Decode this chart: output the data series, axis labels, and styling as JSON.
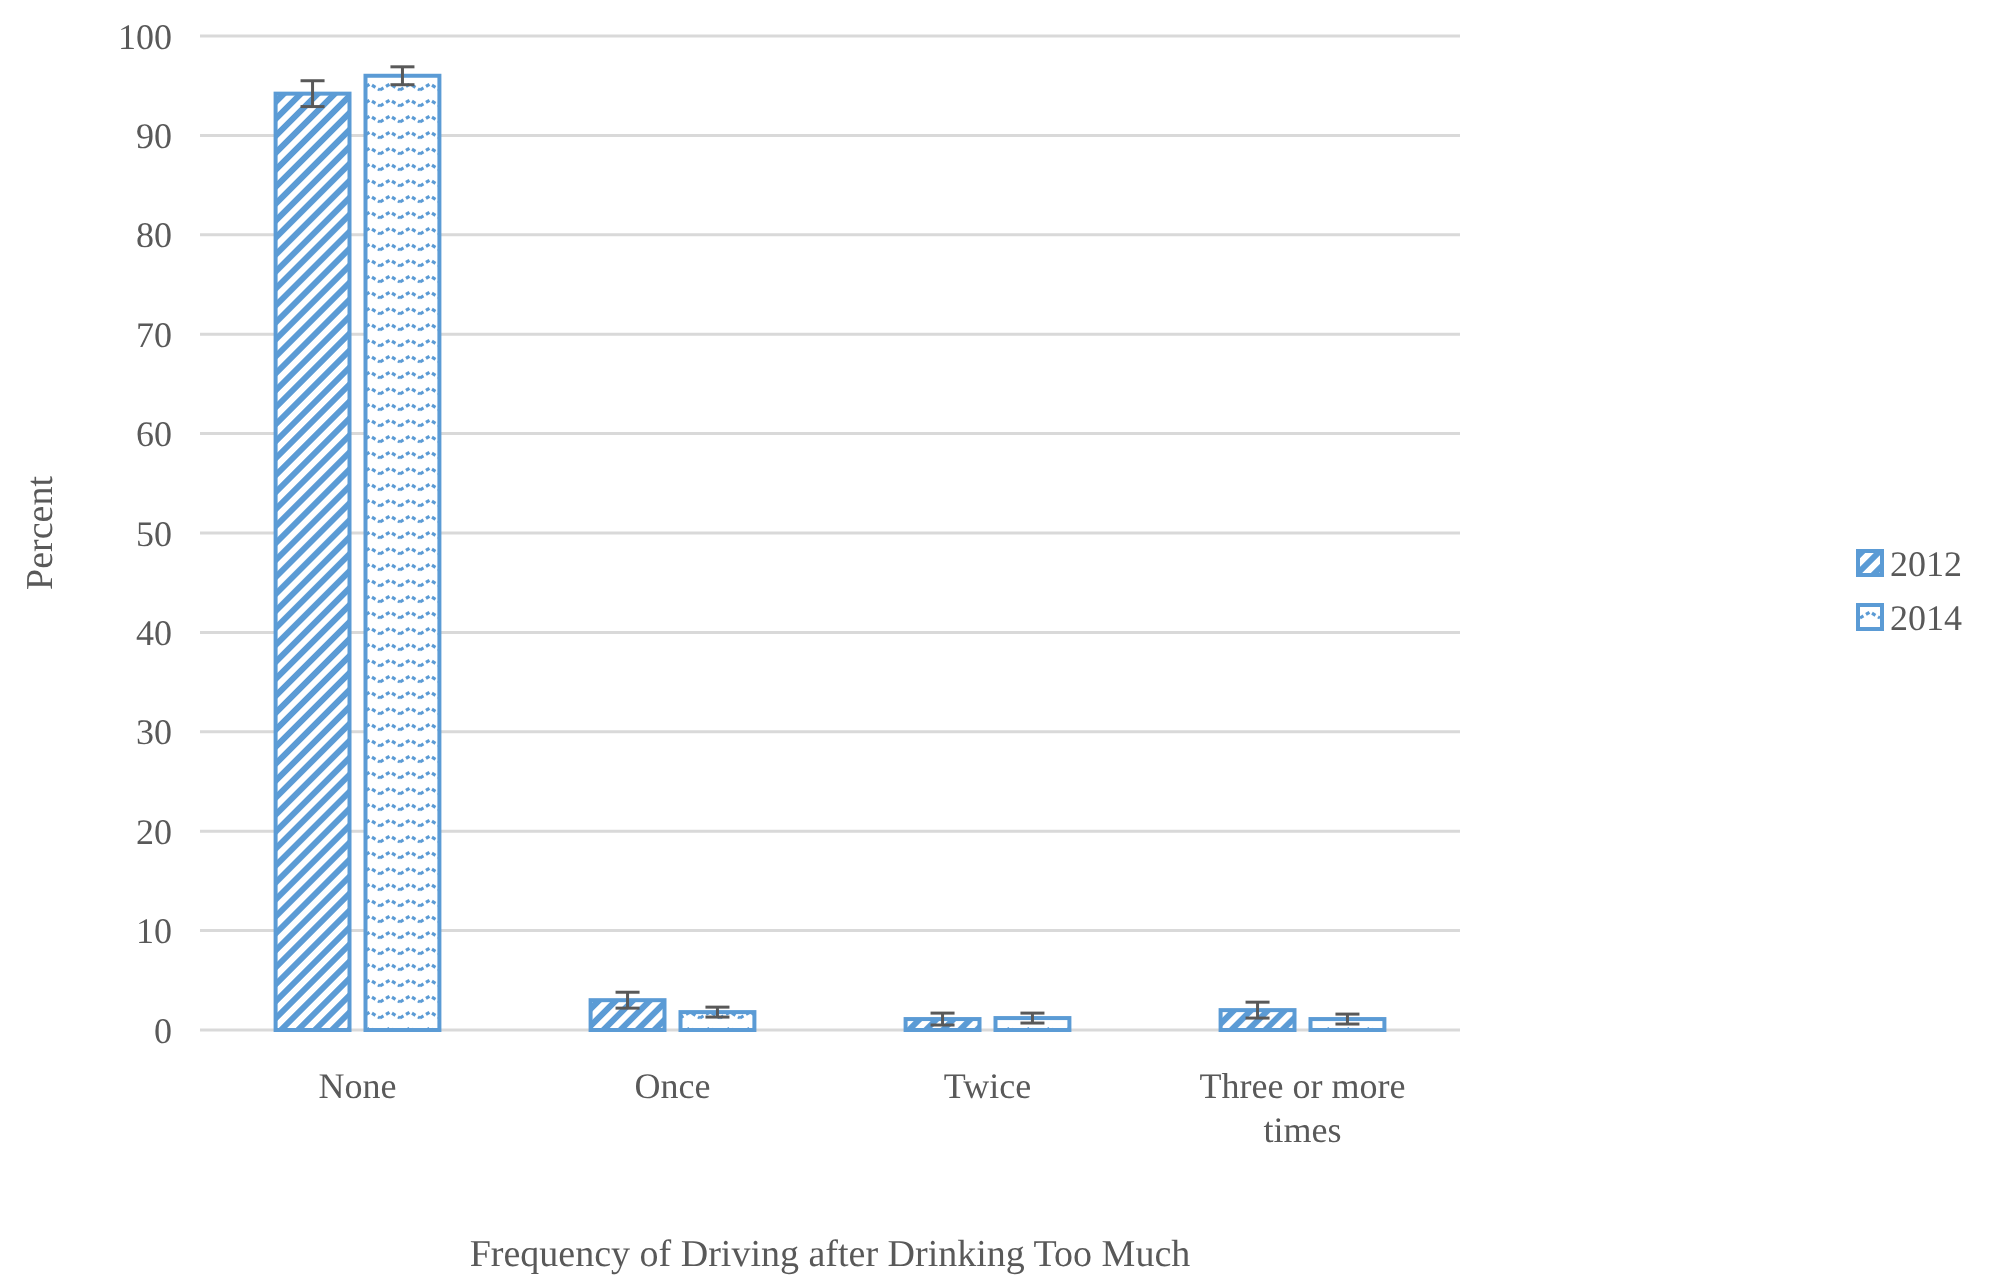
{
  "chart_data": {
    "type": "bar",
    "categories": [
      "None",
      "Once",
      "Twice",
      "Three or more times"
    ],
    "series": [
      {
        "name": "2012",
        "color": "#5b9bd5",
        "values": [
          94.2,
          3.0,
          1.1,
          2.0
        ],
        "errors": [
          1.3,
          0.8,
          0.6,
          0.8
        ]
      },
      {
        "name": "2014",
        "color": "#5b9bd5",
        "values": [
          96.0,
          1.8,
          1.2,
          1.1
        ],
        "errors": [
          0.9,
          0.5,
          0.5,
          0.5
        ]
      }
    ],
    "xlabel": "Frequency of Driving after Drinking Too Much",
    "ylabel": "Percent",
    "ylim": [
      0,
      100
    ],
    "yticks": [
      0,
      10,
      20,
      30,
      40,
      50,
      60,
      70,
      80,
      90,
      100
    ],
    "grid": "y",
    "legend": "right"
  }
}
